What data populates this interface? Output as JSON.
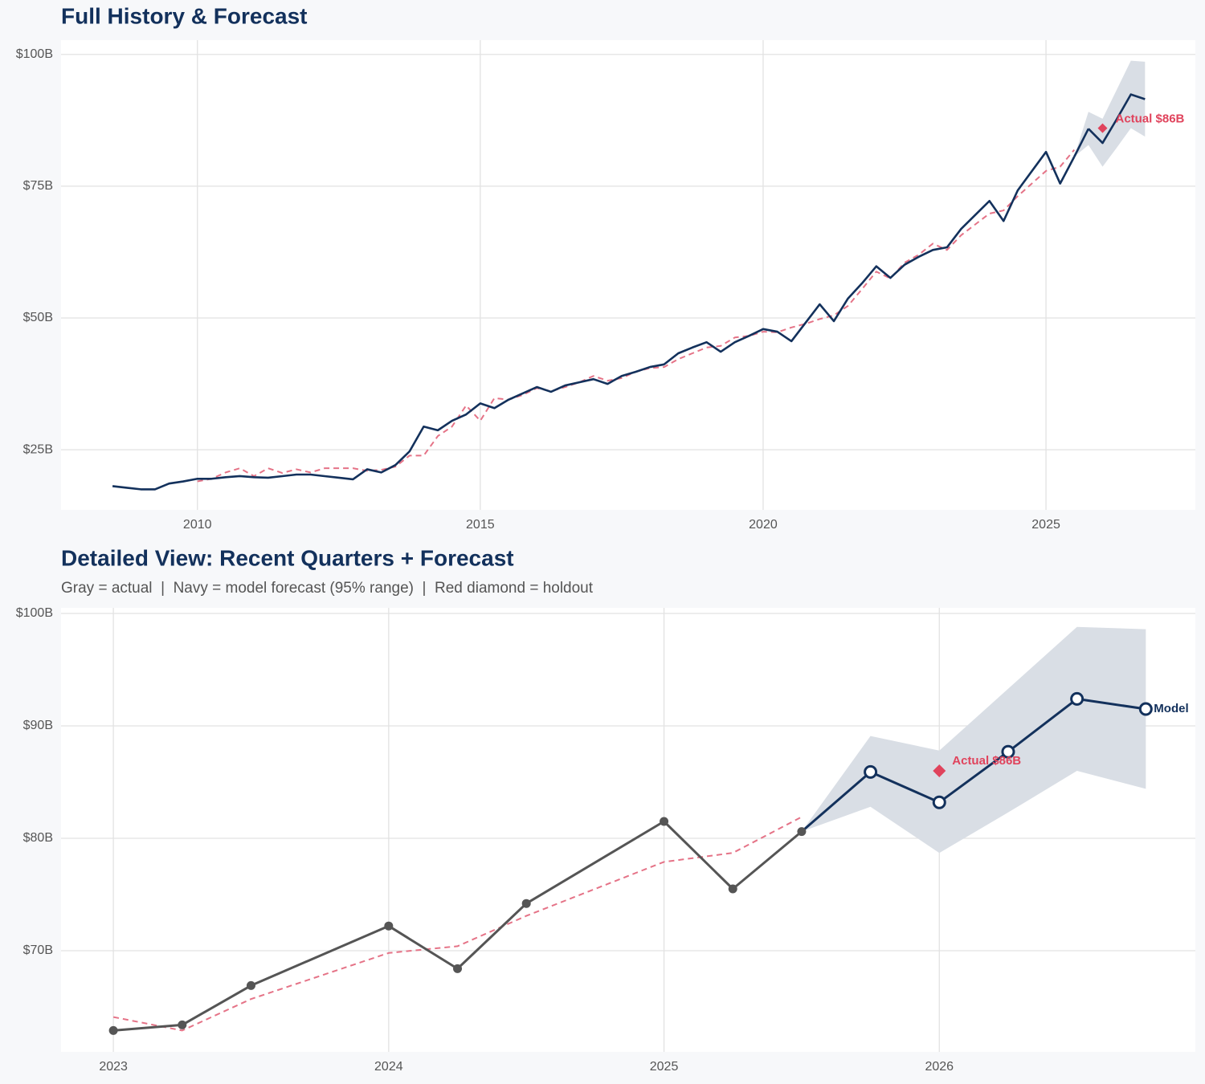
{
  "chart_data": [
    {
      "type": "line",
      "title": "Full History & Forecast",
      "xlim": [
        2007.59,
        2027.64
      ],
      "xticks": [
        2010,
        2015,
        2020,
        2025
      ],
      "ylim": [
        13.6,
        102.7
      ],
      "yticks": [
        {
          "value": 25,
          "label": "$25B"
        },
        {
          "value": 50,
          "label": "$50B"
        },
        {
          "value": 75,
          "label": "$75B"
        },
        {
          "value": 100,
          "label": "$100B"
        }
      ],
      "grid": true,
      "band": {
        "color": "#d9dee5",
        "x": [
          2025.5,
          2025.75,
          2026.0,
          2026.25,
          2026.5,
          2026.75
        ],
        "upper": [
          80.6,
          89.1,
          87.8,
          93.3,
          98.8,
          98.6
        ],
        "lower": [
          80.6,
          82.8,
          78.7,
          82.3,
          86.0,
          84.4
        ]
      },
      "series": [
        {
          "color": "#e57387",
          "dash": true,
          "x": [
            2010.0,
            2010.25,
            2010.5,
            2010.75,
            2011.0,
            2011.25,
            2011.5,
            2011.75,
            2012.0,
            2012.25,
            2012.5,
            2012.75,
            2013.0,
            2013.25,
            2013.5,
            2013.75,
            2014.0,
            2014.25,
            2014.5,
            2014.75,
            2015.0,
            2015.25,
            2015.5,
            2015.75,
            2016.0,
            2016.25,
            2016.5,
            2016.75,
            2017.0,
            2017.25,
            2017.5,
            2017.75,
            2018.0,
            2018.25,
            2018.5,
            2018.75,
            2019.0,
            2019.25,
            2019.5,
            2019.75,
            2020.0,
            2020.25,
            2020.5,
            2020.75,
            2021.0,
            2021.25,
            2021.5,
            2021.75,
            2022.0,
            2022.25,
            2022.5,
            2022.75,
            2023.0,
            2023.25,
            2023.5,
            2024.0,
            2024.25,
            2024.5,
            2025.0,
            2025.25,
            2025.5
          ],
          "values": [
            19.0,
            19.5,
            20.7,
            21.5,
            20.0,
            21.5,
            20.6,
            21.3,
            20.7,
            21.5,
            21.5,
            21.5,
            21.0,
            21.2,
            21.8,
            23.9,
            23.9,
            27.6,
            29.4,
            33.4,
            30.5,
            34.8,
            34.5,
            35.4,
            36.7,
            36.1,
            36.9,
            37.8,
            39.0,
            38.1,
            38.6,
            39.8,
            40.5,
            40.7,
            42.2,
            43.3,
            44.4,
            44.7,
            46.3,
            46.6,
            47.4,
            47.3,
            48.2,
            48.9,
            49.8,
            50.5,
            52.3,
            55.5,
            58.8,
            57.5,
            60.5,
            62.0,
            64.1,
            62.9,
            65.7,
            69.8,
            70.4,
            73.1,
            77.9,
            78.7,
            81.9
          ]
        },
        {
          "color": "#13315c",
          "x": [
            2008.5,
            2008.75,
            2009.0,
            2009.25,
            2009.5,
            2009.75,
            2010.0,
            2010.25,
            2010.5,
            2010.75,
            2011.0,
            2011.25,
            2011.5,
            2011.75,
            2012.0,
            2012.25,
            2012.5,
            2012.75,
            2013.0,
            2013.25,
            2013.5,
            2013.75,
            2014.0,
            2014.25,
            2014.5,
            2014.75,
            2015.0,
            2015.25,
            2015.5,
            2015.75,
            2016.0,
            2016.25,
            2016.5,
            2016.75,
            2017.0,
            2017.25,
            2017.5,
            2017.75,
            2018.0,
            2018.25,
            2018.5,
            2018.75,
            2019.0,
            2019.25,
            2019.5,
            2019.75,
            2020.0,
            2020.25,
            2020.5,
            2020.75,
            2021.0,
            2021.25,
            2021.5,
            2021.75,
            2022.0,
            2022.25,
            2022.5,
            2022.75,
            2023.0,
            2023.25,
            2023.5,
            2024.0,
            2024.25,
            2024.5,
            2025.0,
            2025.25,
            2025.5
          ],
          "values": [
            18.1,
            17.8,
            17.5,
            17.5,
            18.6,
            19.0,
            19.5,
            19.5,
            19.8,
            20.0,
            19.8,
            19.7,
            20.0,
            20.3,
            20.3,
            20.0,
            19.7,
            19.4,
            21.3,
            20.7,
            22.1,
            24.7,
            29.4,
            28.7,
            30.5,
            31.7,
            33.8,
            32.9,
            34.5,
            35.7,
            36.9,
            36.0,
            37.2,
            37.8,
            38.4,
            37.5,
            39.0,
            39.8,
            40.7,
            41.2,
            43.3,
            44.4,
            45.4,
            43.6,
            45.4,
            46.6,
            47.9,
            47.4,
            45.6,
            49.1,
            52.6,
            49.4,
            53.7,
            56.6,
            59.8,
            57.6,
            60.1,
            61.6,
            62.9,
            63.4,
            66.9,
            72.2,
            68.4,
            74.2,
            81.5,
            75.5,
            80.6
          ]
        },
        {
          "color": "#13315c",
          "connect": true,
          "x": [
            2025.75,
            2026.0,
            2026.25,
            2026.5,
            2026.75
          ],
          "values": [
            85.9,
            83.2,
            87.7,
            92.4,
            91.5
          ]
        }
      ],
      "holdout": {
        "x": 2026.0,
        "value": 86,
        "label": "Actual $86B",
        "color": "#e0435c"
      }
    },
    {
      "type": "line",
      "title": "Detailed View: Recent Quarters + Forecast",
      "subtitle": "Gray = actual  |  Navy = model forecast (95% range)  |  Red diamond = holdout",
      "xlim": [
        2022.81,
        2026.93
      ],
      "xticks": [
        2023,
        2024,
        2025,
        2026
      ],
      "ylim": [
        61.0,
        100.5
      ],
      "yticks": [
        {
          "value": 70,
          "label": "$70B"
        },
        {
          "value": 80,
          "label": "$80B"
        },
        {
          "value": 90,
          "label": "$90B"
        },
        {
          "value": 100,
          "label": "$100B"
        }
      ],
      "grid": true,
      "band": {
        "color": "#d9dee5",
        "x": [
          2025.5,
          2025.75,
          2026.0,
          2026.25,
          2026.5,
          2026.75
        ],
        "upper": [
          80.6,
          89.1,
          87.8,
          93.3,
          98.8,
          98.6
        ],
        "lower": [
          80.6,
          82.8,
          78.7,
          82.3,
          86.0,
          84.4
        ]
      },
      "series": [
        {
          "color": "#e57387",
          "dash": true,
          "x": [
            2023.0,
            2023.25,
            2023.5,
            2024.0,
            2024.25,
            2024.5,
            2025.0,
            2025.25,
            2025.5
          ],
          "values": [
            64.1,
            62.9,
            65.7,
            69.8,
            70.4,
            73.1,
            77.9,
            78.7,
            81.9
          ]
        },
        {
          "color": "#555555",
          "markers": "filled",
          "x": [
            2023.0,
            2023.25,
            2023.5,
            2024.0,
            2024.25,
            2024.5,
            2025.0,
            2025.25,
            2025.5
          ],
          "values": [
            62.9,
            63.4,
            66.9,
            72.2,
            68.4,
            74.2,
            81.5,
            75.5,
            80.6
          ]
        },
        {
          "color": "#13315c",
          "markers": "open",
          "connect": true,
          "end_label": "Model",
          "x": [
            2025.75,
            2026.0,
            2026.25,
            2026.5,
            2026.75
          ],
          "values": [
            85.9,
            83.2,
            87.7,
            92.4,
            91.5
          ]
        }
      ],
      "holdout": {
        "x": 2026.0,
        "value": 86,
        "label": "Actual $86B",
        "color": "#e0435c"
      }
    }
  ]
}
